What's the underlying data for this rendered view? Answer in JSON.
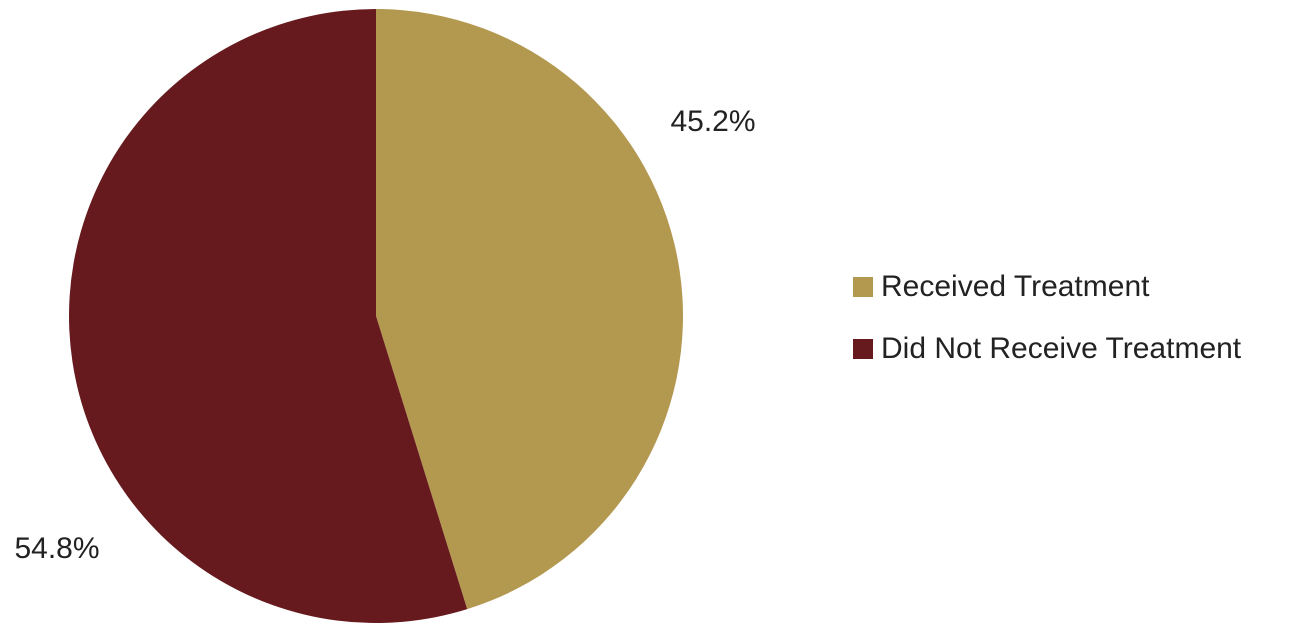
{
  "chart_data": {
    "type": "pie",
    "slices": [
      {
        "label": "Received Treatment",
        "value": 45.2,
        "display": "45.2%",
        "color": "#b39850"
      },
      {
        "label": "Did Not Receive Treatment",
        "value": 54.8,
        "display": "54.8%",
        "color": "#661a1e"
      }
    ],
    "legend_position": "right"
  }
}
